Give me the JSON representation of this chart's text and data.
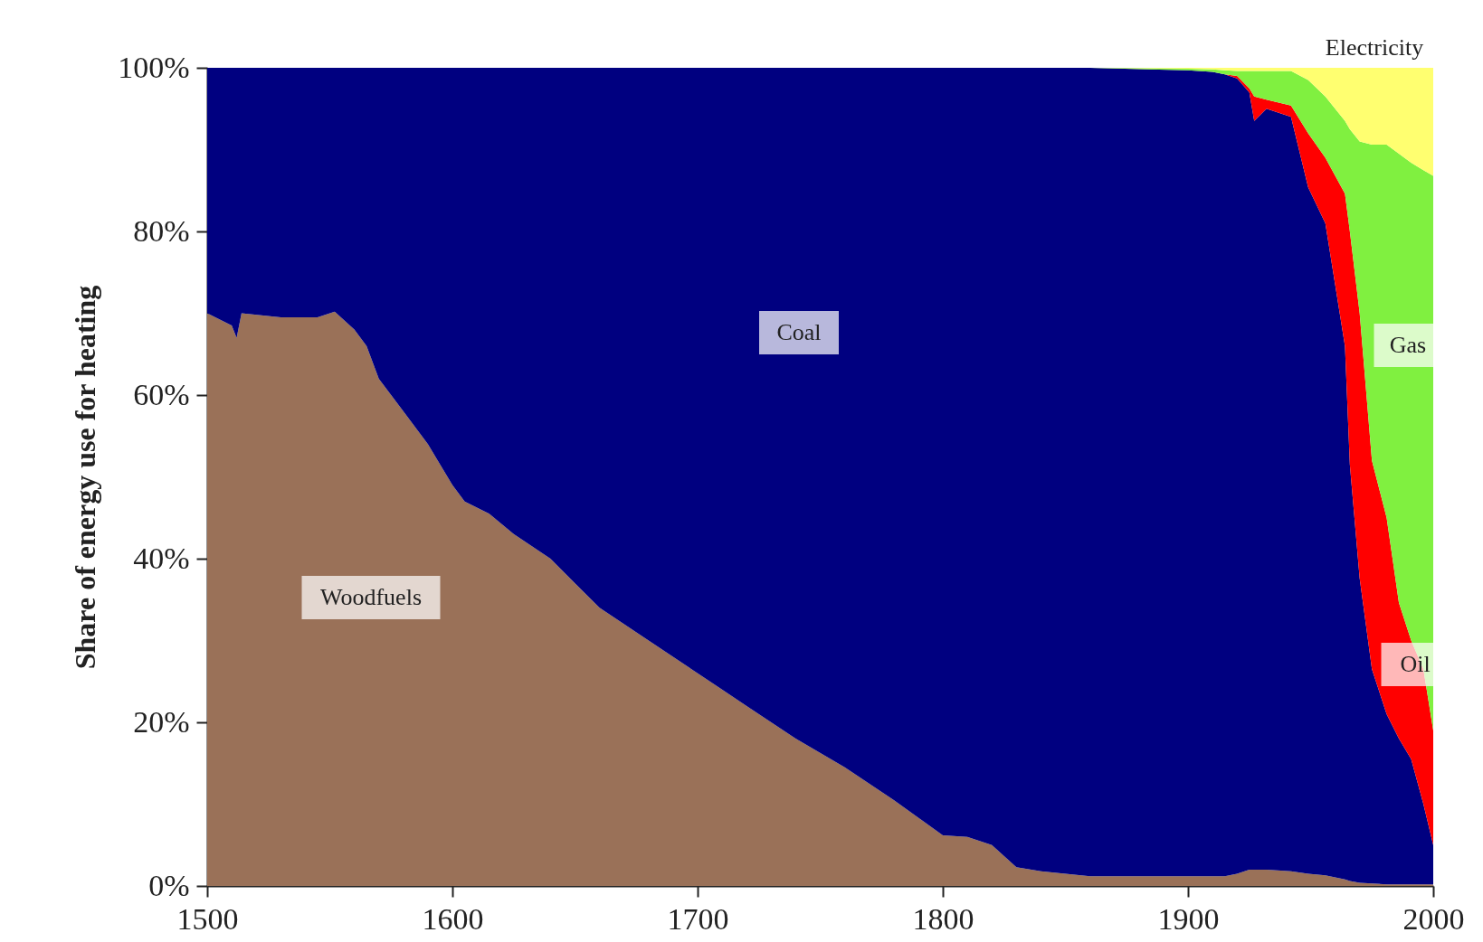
{
  "chart_data": {
    "type": "area",
    "stacked": true,
    "ylabel": "Share of energy use for heating",
    "x": [
      1500,
      1510,
      1512,
      1514,
      1530,
      1545,
      1552,
      1560,
      1565,
      1570,
      1575,
      1580,
      1590,
      1600,
      1605,
      1615,
      1625,
      1640,
      1650,
      1660,
      1680,
      1700,
      1720,
      1740,
      1760,
      1780,
      1800,
      1810,
      1820,
      1830,
      1840,
      1860,
      1900,
      1910,
      1915,
      1920,
      1925,
      1927,
      1932,
      1942,
      1949,
      1956,
      1964,
      1966,
      1970,
      1975,
      1981,
      1986,
      1991,
      1996,
      2000
    ],
    "series": [
      {
        "name": "Woodfuels",
        "color": "#9a7158",
        "values": [
          70,
          68.5,
          67,
          70,
          69.5,
          69.5,
          70.2,
          68,
          66,
          62,
          60,
          58,
          54,
          49,
          47,
          45.5,
          43,
          40,
          37,
          34,
          30,
          26,
          22,
          18,
          14.5,
          10.5,
          6.2,
          6,
          5,
          2.3,
          1.8,
          1.2,
          1.2,
          1.2,
          1.2,
          1.5,
          2,
          2,
          2,
          1.8,
          1.5,
          1.3,
          0.8,
          0.6,
          0.4,
          0.3,
          0.2,
          0.2,
          0.2,
          0.2,
          0.2
        ]
      },
      {
        "name": "Coal",
        "color": "#000080",
        "values": [
          30,
          31.5,
          33,
          30,
          30.5,
          30.5,
          29.8,
          32,
          34,
          38,
          40,
          42,
          46,
          51,
          53,
          54.5,
          57,
          60,
          63,
          66,
          70,
          74,
          78,
          82,
          85.5,
          89.5,
          93.8,
          94,
          95,
          97.7,
          98.2,
          98.8,
          98.5,
          98.3,
          98,
          97.2,
          95,
          91.5,
          93,
          92.2,
          83.9,
          79.7,
          65.2,
          50.9,
          37.2,
          26.2,
          20.8,
          17.8,
          15.3,
          9.8,
          4.8
        ]
      },
      {
        "name": "Oil",
        "color": "#ff0000",
        "values": [
          0,
          0,
          0,
          0,
          0,
          0,
          0,
          0,
          0,
          0,
          0,
          0,
          0,
          0,
          0,
          0,
          0,
          0,
          0,
          0,
          0,
          0,
          0,
          0,
          0,
          0,
          0,
          0,
          0,
          0,
          0,
          0,
          0,
          0,
          0,
          0.3,
          0.5,
          3,
          1.1,
          1.4,
          6.6,
          8,
          18.6,
          28.5,
          32.4,
          25.5,
          24,
          16.6,
          14.5,
          16.5,
          14
        ]
      },
      {
        "name": "Gas",
        "color": "#80f040",
        "values": [
          0,
          0,
          0,
          0,
          0,
          0,
          0,
          0,
          0,
          0,
          0,
          0,
          0,
          0,
          0,
          0,
          0,
          0,
          0,
          0,
          0,
          0,
          0,
          0,
          0,
          0,
          0,
          0,
          0,
          0,
          0,
          0,
          0.2,
          0.3,
          0.5,
          0.6,
          2.1,
          3.1,
          3.5,
          4.2,
          6.5,
          7.5,
          8.9,
          12.5,
          21,
          38.6,
          45.6,
          54.9,
          58.4,
          61,
          67.8
        ]
      },
      {
        "name": "Electricity",
        "color": "#ffff70",
        "values": [
          0,
          0,
          0,
          0,
          0,
          0,
          0,
          0,
          0,
          0,
          0,
          0,
          0,
          0,
          0,
          0,
          0,
          0,
          0,
          0,
          0,
          0,
          0,
          0,
          0,
          0,
          0,
          0,
          0,
          0,
          0,
          0,
          0.1,
          0.2,
          0.3,
          0.4,
          0.4,
          0.4,
          0.4,
          0.4,
          1.5,
          3.5,
          6.5,
          7.5,
          9,
          9.4,
          9.4,
          10.5,
          11.6,
          12.5,
          13.2
        ]
      }
    ],
    "xlim": [
      1500,
      2000
    ],
    "xticks": [
      1500,
      1600,
      1700,
      1800,
      1900,
      2000
    ],
    "ylim": [
      0,
      100
    ],
    "yticks": [
      {
        "value": 0,
        "label": "0%"
      },
      {
        "value": 20,
        "label": "20%"
      },
      {
        "value": 40,
        "label": "40%"
      },
      {
        "value": 60,
        "label": "60%"
      },
      {
        "value": 80,
        "label": "80%"
      },
      {
        "value": 100,
        "label": "100%"
      }
    ]
  }
}
